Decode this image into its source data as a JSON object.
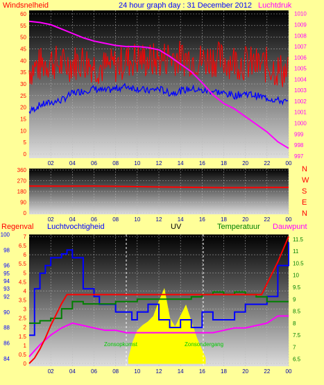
{
  "header": {
    "left_label": "Windsnelheid",
    "title": "24 hour graph day : 31 December 2012",
    "right_label": "Luchtdruk"
  },
  "lower_header": {
    "rain": "Regenval",
    "humidity": "Luchtvochtigheid",
    "uv": "UV",
    "temperature": "Temperatuur",
    "dewpoint": "Dauwpunt"
  },
  "annotations": {
    "sunrise": "Zonsopkomst",
    "sunset": "Zonsondergang"
  },
  "colors": {
    "background": "#ffff99",
    "wind_gust": "#ff0000",
    "wind_avg": "#0000ff",
    "pressure": "#ff00ff",
    "direction": "#ff0000",
    "humidity": "#0000ff",
    "temperature": "#008000",
    "dewpoint": "#ff00ff",
    "rain": "#ff0000",
    "uv": "#ffff00"
  },
  "chart_data": [
    {
      "type": "line",
      "panel": "wind-pressure",
      "x_ticks": [
        "02",
        "04",
        "06",
        "08",
        "10",
        "12",
        "14",
        "16",
        "18",
        "20",
        "22",
        "00"
      ],
      "y_left": {
        "ticks": [
          "0",
          "5",
          "10",
          "15",
          "20",
          "25",
          "30",
          "35",
          "40",
          "45",
          "50",
          "55",
          "60"
        ],
        "ylim": [
          0,
          60
        ]
      },
      "y_right": {
        "ticks": [
          "997",
          "998",
          "999",
          "1000",
          "1001",
          "1002",
          "1003",
          "1004",
          "1005",
          "1006",
          "1007",
          "1008",
          "1009",
          "1010"
        ],
        "ylim": [
          996.8,
          1010.3
        ]
      },
      "series": [
        {
          "key": "gust",
          "x": [
            0,
            1,
            2,
            3,
            4,
            5,
            6,
            7,
            8,
            9,
            10,
            11,
            12,
            13,
            14,
            15,
            16,
            17,
            18,
            19,
            20,
            21,
            22,
            23,
            24
          ],
          "values": [
            36,
            38,
            40,
            38,
            39,
            40,
            38,
            37,
            38,
            40,
            41,
            40,
            40,
            42,
            41,
            41,
            40,
            41,
            40,
            40,
            39,
            38,
            38,
            36,
            35
          ]
        },
        {
          "key": "avg",
          "x": [
            0,
            1,
            2,
            3,
            4,
            5,
            6,
            7,
            8,
            9,
            10,
            11,
            12,
            13,
            14,
            15,
            16,
            17,
            18,
            19,
            20,
            21,
            22,
            23,
            24
          ],
          "values": [
            18,
            21,
            22,
            23,
            26,
            27,
            28,
            27,
            28,
            29,
            28,
            27,
            28,
            26,
            27,
            28,
            27,
            27,
            26,
            25,
            26,
            25,
            24,
            23,
            22
          ]
        },
        {
          "key": "pressure",
          "x": [
            0,
            1,
            2,
            3,
            4,
            5,
            6,
            7,
            8,
            9,
            10,
            11,
            12,
            13,
            14,
            15,
            16,
            17,
            18,
            19,
            20,
            21,
            22,
            23,
            24
          ],
          "values": [
            1009.3,
            1009.2,
            1009.0,
            1008.6,
            1008.2,
            1007.8,
            1007.5,
            1007.3,
            1007.1,
            1007.0,
            1007.0,
            1006.9,
            1006.7,
            1006.1,
            1005.4,
            1004.7,
            1003.7,
            1002.6,
            1001.8,
            1001.3,
            1000.6,
            999.9,
            999.2,
            998.3,
            997.7
          ]
        }
      ]
    },
    {
      "type": "line",
      "panel": "wind-direction",
      "x_ticks": [
        "02",
        "04",
        "06",
        "08",
        "10",
        "12",
        "14",
        "16",
        "18",
        "20",
        "22",
        "00"
      ],
      "y_left": {
        "ticks": [
          "0",
          "90",
          "180",
          "270",
          "360"
        ],
        "ylim": [
          0,
          360
        ]
      },
      "y_right": {
        "ticks": [
          "N",
          "W",
          "S",
          "E",
          "N"
        ]
      },
      "series": [
        {
          "key": "direction",
          "x": [
            0,
            3,
            6,
            9,
            12,
            15,
            18,
            21,
            24
          ],
          "values": [
            225,
            224,
            225,
            222,
            218,
            215,
            212,
            213,
            214
          ]
        }
      ]
    },
    {
      "type": "line",
      "panel": "rain-humidity-uv-temperature",
      "x_ticks": [
        "02",
        "04",
        "06",
        "08",
        "10",
        "12",
        "14",
        "16",
        "18",
        "20",
        "22",
        "00"
      ],
      "y_rain": {
        "ticks": [
          "0",
          "0.5",
          "1",
          "1.5",
          "2",
          "2.5",
          "3",
          "3.5",
          "4",
          "4.5",
          "5",
          "5.5",
          "6",
          "6.5",
          "7"
        ],
        "ylim": [
          0,
          7
        ]
      },
      "y_humidity": {
        "ticks": [
          "84",
          "86",
          "88",
          "90",
          "92",
          "93",
          "94",
          "95",
          "96",
          "98",
          "100"
        ],
        "ylim": [
          83,
          100
        ]
      },
      "y_temperature": {
        "ticks": [
          "6.5",
          "7",
          "7.5",
          "8",
          "8.5",
          "9",
          "9.5",
          "10",
          "10.5",
          "11",
          "11.5"
        ],
        "ylim": [
          6.2,
          11.7
        ]
      },
      "series": [
        {
          "key": "rain",
          "x": [
            0,
            0.5,
            1,
            1.5,
            2,
            2.5,
            3,
            3.5,
            4,
            21.5,
            22,
            22.5,
            23,
            23.5,
            24
          ],
          "values": [
            0,
            0.3,
            0.8,
            1.4,
            2.1,
            2.7,
            3.3,
            3.8,
            3.8,
            3.8,
            4.4,
            5.0,
            5.6,
            6.3,
            7.0
          ]
        },
        {
          "key": "humidity",
          "x": [
            0,
            0.5,
            1,
            1.5,
            2,
            3,
            3.5,
            4,
            5,
            6,
            6.5,
            7,
            8,
            9,
            9.5,
            10,
            11,
            12,
            13,
            14,
            15,
            16,
            17,
            18,
            19,
            20,
            21,
            22,
            23,
            24
          ],
          "values": [
            87,
            93,
            95,
            96,
            97,
            97.5,
            98,
            97,
            93,
            92,
            91,
            91,
            90,
            90,
            89,
            90,
            91,
            89,
            88,
            89,
            88,
            90,
            89,
            89,
            90,
            91,
            91,
            92,
            96,
            99
          ]
        },
        {
          "key": "temperature",
          "x": [
            0,
            1,
            2,
            3,
            4,
            5,
            6,
            7,
            8,
            9,
            10,
            11,
            12,
            13,
            14,
            15,
            16,
            17,
            18,
            19,
            20,
            21,
            22,
            23,
            24
          ],
          "values": [
            8.0,
            8.1,
            8.2,
            8.6,
            8.9,
            8.8,
            8.8,
            8.8,
            8.9,
            8.9,
            9.0,
            9.0,
            9.0,
            9.0,
            9.0,
            9.1,
            9.2,
            9.3,
            9.2,
            9.3,
            9.2,
            9.1,
            8.9,
            8.9,
            8.9
          ]
        },
        {
          "key": "dewpoint",
          "x": [
            0,
            1,
            2,
            3,
            4,
            5,
            6,
            7,
            8,
            9,
            10,
            11,
            12,
            13,
            14,
            15,
            16,
            17,
            18,
            19,
            20,
            21,
            22,
            23,
            24
          ],
          "values": [
            6.6,
            7.1,
            7.5,
            7.8,
            8.0,
            7.9,
            7.8,
            7.7,
            7.7,
            7.6,
            7.6,
            7.6,
            7.6,
            7.6,
            7.6,
            7.6,
            7.6,
            7.6,
            7.7,
            7.8,
            7.8,
            7.9,
            8.0,
            8.3,
            8.3
          ]
        },
        {
          "key": "uv",
          "x": [
            9.2,
            9.6,
            10,
            10.5,
            11,
            11.5,
            12,
            12.5,
            13,
            13.5,
            14,
            14.5,
            15,
            15.5,
            16.3
          ],
          "values": [
            0.3,
            1.2,
            1.8,
            2.1,
            2.3,
            2.6,
            3.4,
            4.1,
            2.5,
            2.0,
            2.6,
            3.2,
            2.3,
            1.4,
            0.3
          ]
        }
      ]
    }
  ]
}
